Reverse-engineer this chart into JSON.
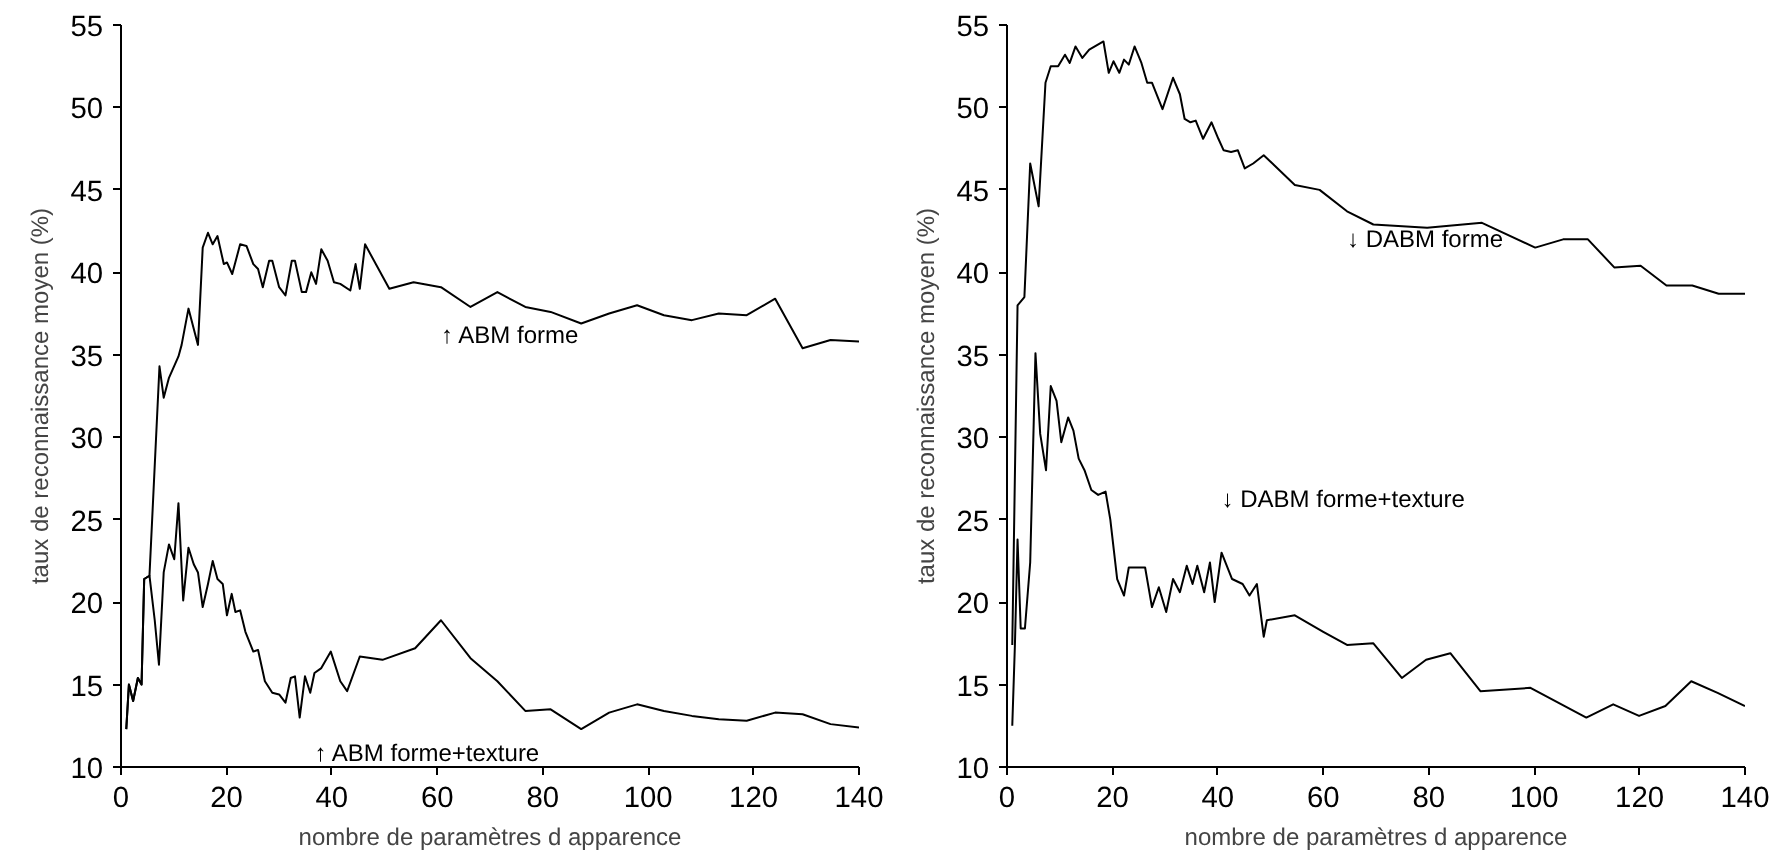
{
  "chart_data": [
    {
      "type": "line",
      "xlabel": "nombre de paramètres d apparence",
      "ylabel": "taux de reconnaissance moyen (%)",
      "xlim": [
        0,
        140
      ],
      "ylim": [
        10,
        55
      ],
      "xticks": [
        0,
        20,
        40,
        60,
        80,
        100,
        120,
        140
      ],
      "yticks": [
        10,
        15,
        20,
        25,
        30,
        35,
        40,
        45,
        50,
        55
      ],
      "grid": false,
      "line_style": "solid",
      "series": [
        {
          "name": "↑ ABM forme",
          "color": "#000000",
          "x": [
            1,
            1.5,
            2.3,
            3.2,
            3.9,
            4.4,
            5.4,
            7.3,
            8.1,
            9.1,
            10.9,
            11.5,
            12.8,
            14.6,
            15.5,
            16.5,
            17.4,
            18.3,
            19.5,
            20.1,
            21.1,
            22.6,
            23.8,
            25.1,
            26,
            26.9,
            28.1,
            28.7,
            30,
            31.2,
            32.4,
            33,
            34.3,
            35.1,
            36.1,
            37,
            38,
            39.2,
            40.4,
            41.6,
            43.5,
            44.5,
            45.3,
            46.3,
            50.9,
            55.5,
            60.7,
            66.3,
            71.4,
            76.7,
            81.5,
            87.3,
            92.6,
            97.9,
            103,
            108.3,
            113.4,
            118.7,
            124.1,
            129.3,
            134.6,
            140
          ],
          "values": [
            12.3,
            15,
            14,
            15.4,
            15,
            21.4,
            21.6,
            34.3,
            32.4,
            33.6,
            34.9,
            35.6,
            37.8,
            35.6,
            41.5,
            42.4,
            41.7,
            42.2,
            40.5,
            40.6,
            39.9,
            41.7,
            41.6,
            40.5,
            40.2,
            39.1,
            40.7,
            40.7,
            39.1,
            38.6,
            40.7,
            40.7,
            38.8,
            38.8,
            40,
            39.3,
            41.4,
            40.7,
            39.4,
            39.3,
            38.9,
            40.5,
            39,
            41.7,
            39,
            39.4,
            39.1,
            37.9,
            38.8,
            37.9,
            37.6,
            36.9,
            37.5,
            38,
            37.4,
            37.1,
            37.5,
            37.4,
            38.4,
            35.4,
            35.9,
            35.8
          ]
        },
        {
          "name": "↑ ABM forme+texture",
          "color": "#000000",
          "x": [
            1,
            1.5,
            2.3,
            3.2,
            3.9,
            4.4,
            5.4,
            6.4,
            7.2,
            8.1,
            9.1,
            10.1,
            10.9,
            11.8,
            12.8,
            13.8,
            14.6,
            15.5,
            16.5,
            17.4,
            18.3,
            19.3,
            20.1,
            21,
            21.7,
            22.6,
            23.6,
            25.1,
            26,
            27.3,
            28.7,
            30,
            31.2,
            32.2,
            33,
            33.9,
            34.9,
            35.9,
            36.7,
            38,
            39.8,
            41.6,
            42.9,
            45.3,
            49.6,
            55.8,
            60.7,
            66.3,
            71.4,
            76.7,
            81.5,
            87.3,
            92.6,
            97.9,
            103,
            108.3,
            113.4,
            118.7,
            124.1,
            129.3,
            134.6,
            140
          ],
          "values": [
            12.3,
            15,
            14,
            15.4,
            15,
            21.4,
            21.6,
            18.9,
            16.2,
            21.8,
            23.5,
            22.6,
            26,
            20.1,
            23.3,
            22.3,
            21.8,
            19.7,
            21.1,
            22.5,
            21.4,
            21.1,
            19.2,
            20.5,
            19.4,
            19.5,
            18.2,
            17,
            17.1,
            15.2,
            14.5,
            14.4,
            13.9,
            15.4,
            15.5,
            13,
            15.5,
            14.5,
            15.7,
            16,
            17,
            15.2,
            14.6,
            16.7,
            16.5,
            17.2,
            18.9,
            16.6,
            15.2,
            13.4,
            13.5,
            12.3,
            13.3,
            13.8,
            13.4,
            13.1,
            12.9,
            12.8,
            13.3,
            13.2,
            12.6,
            12.4
          ]
        }
      ]
    },
    {
      "type": "line",
      "xlabel": "nombre de paramètres d apparence",
      "ylabel": "taux de reconnaissance moyen (%)",
      "xlim": [
        0,
        140
      ],
      "ylim": [
        10,
        55
      ],
      "xticks": [
        0,
        20,
        40,
        60,
        80,
        100,
        120,
        140
      ],
      "yticks": [
        10,
        15,
        20,
        25,
        30,
        35,
        40,
        45,
        50,
        55
      ],
      "grid": false,
      "line_style": "solid",
      "series": [
        {
          "name": "↓ DABM forme",
          "color": "#000000",
          "x": [
            1,
            2,
            3.3,
            4.4,
            6,
            7.3,
            8.3,
            9.7,
            11,
            11.9,
            13,
            14.3,
            15.6,
            18.3,
            19.3,
            20.2,
            21.3,
            22.2,
            23.1,
            24.2,
            25.5,
            26.6,
            27.5,
            29.5,
            31.5,
            32.8,
            33.7,
            34.8,
            35.8,
            37.2,
            38.8,
            40.1,
            41.1,
            42.5,
            43.8,
            45.1,
            46.7,
            48.7,
            50.7,
            54.6,
            59.3,
            64.5,
            69.5,
            79.7,
            90.1,
            100.2,
            105.5,
            110.2,
            115.2,
            120.2,
            125.1,
            130,
            135,
            140
          ],
          "values": [
            17.4,
            38,
            38.5,
            46.6,
            44,
            51.5,
            52.5,
            52.5,
            53.2,
            52.7,
            53.7,
            53,
            53.5,
            54,
            52.1,
            52.8,
            52.1,
            52.9,
            52.6,
            53.7,
            52.7,
            51.5,
            51.5,
            49.9,
            51.8,
            50.8,
            49.3,
            49.1,
            49.2,
            48.1,
            49.1,
            48.1,
            47.4,
            47.3,
            47.4,
            46.3,
            46.6,
            47.1,
            46.5,
            45.3,
            45,
            43.7,
            42.9,
            42.7,
            43,
            41.5,
            42,
            42,
            40.3,
            40.4,
            39.2,
            39.2,
            38.7,
            38.7
          ]
        },
        {
          "name": "↓ DABM forme+texture",
          "color": "#000000",
          "x": [
            1,
            1.5,
            2,
            2.6,
            3.4,
            4.4,
            5.4,
            6.3,
            7.4,
            8.3,
            9.4,
            10.3,
            11.6,
            12.6,
            13.6,
            14.7,
            16,
            17.3,
            18.7,
            19.6,
            20.9,
            22.2,
            23.1,
            26.2,
            27.5,
            28.8,
            30.2,
            31.5,
            32.8,
            34.1,
            35.2,
            36.1,
            37.4,
            38.5,
            39.4,
            40.7,
            42.7,
            44.7,
            46,
            47.4,
            48.7,
            49.3,
            54.6,
            60,
            64.5,
            69.5,
            74.9,
            79.5,
            84.1,
            89.8,
            99.3,
            109.9,
            115,
            119.9,
            124.9,
            129.8,
            134.8,
            140
          ],
          "values": [
            12.5,
            17.4,
            23.8,
            18.4,
            18.4,
            22.4,
            35.1,
            30.2,
            28,
            33.1,
            32.2,
            29.7,
            31.2,
            30.4,
            28.7,
            28,
            26.8,
            26.5,
            26.7,
            25,
            21.4,
            20.4,
            22.1,
            22.1,
            19.7,
            20.9,
            19.4,
            21.4,
            20.6,
            22.2,
            21.1,
            22.2,
            20.6,
            22.4,
            20,
            23,
            21.4,
            21.1,
            20.4,
            21.1,
            17.9,
            18.9,
            19.2,
            18.2,
            17.4,
            17.5,
            15.4,
            16.5,
            16.9,
            14.6,
            14.8,
            13,
            13.8,
            13.1,
            13.7,
            15.2,
            14.5,
            13.7
          ]
        }
      ]
    }
  ]
}
